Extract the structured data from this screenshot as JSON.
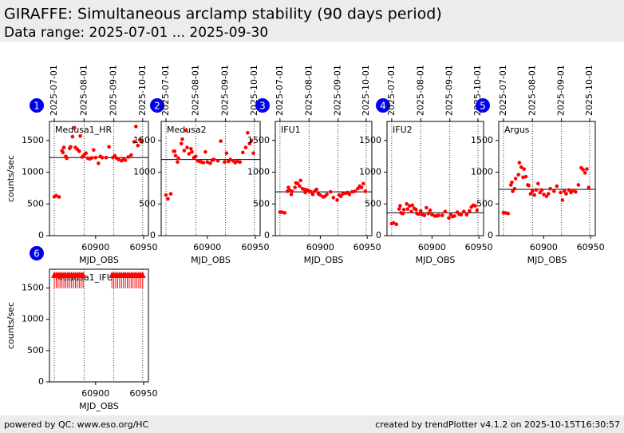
{
  "header": {
    "title": "GIRAFFE: Simultaneous arclamp stability (90 days period)",
    "subtitle": "Data range: 2025-07-01 ... 2025-09-30"
  },
  "footer": {
    "left": "powered by QC: www.eso.org/HC",
    "right": "created by trendPlotter v4.1.2 on 2025-10-15T16:30:57"
  },
  "chart_data": [
    {
      "type": "scatter",
      "panel": 1,
      "label": "Medusa1_HR",
      "ylabel": "counts/sec",
      "xlabel": "MJD_OBS",
      "color": "#ff0000",
      "xlim": [
        60852,
        60955
      ],
      "ylim": [
        0,
        1800
      ],
      "xticks": [
        60900,
        60950
      ],
      "yticks": [
        0,
        500,
        1000,
        1500
      ],
      "x2ticks": [
        {
          "value": 60857,
          "label": "2025-07-01"
        },
        {
          "value": 60888,
          "label": "2025-08-01"
        },
        {
          "value": 60919,
          "label": "2025-09-01"
        },
        {
          "value": 60949,
          "label": "2025-10-01"
        }
      ],
      "reference_line": 1230,
      "x": [
        60857,
        60859,
        60862,
        60865,
        60866,
        60867,
        60869,
        60870,
        60873,
        60874,
        60876,
        60878,
        60879,
        60881,
        60883,
        60884,
        60886,
        60888,
        60890,
        60892,
        60894,
        60896,
        60898,
        60900,
        60903,
        60905,
        60907,
        60911,
        60914,
        60918,
        60920,
        60922,
        60924,
        60927,
        60929,
        60931,
        60934,
        60937,
        60940,
        60942,
        60944,
        60946,
        60948
      ],
      "values": [
        615,
        630,
        610,
        1340,
        1310,
        1390,
        1250,
        1220,
        1375,
        1400,
        1560,
        1700,
        1390,
        1360,
        1330,
        1570,
        1240,
        1270,
        1300,
        1220,
        1210,
        1225,
        1350,
        1230,
        1140,
        1250,
        1230,
        1230,
        1400,
        1230,
        1260,
        1220,
        1200,
        1180,
        1200,
        1190,
        1240,
        1270,
        1480,
        1720,
        1420,
        1510,
        1480
      ]
    },
    {
      "type": "scatter",
      "panel": 2,
      "label": "Medusa2",
      "xlabel": "MJD_OBS",
      "color": "#ff0000",
      "xlim": [
        60852,
        60955
      ],
      "ylim": [
        0,
        1800
      ],
      "xticks": [
        60900,
        60950
      ],
      "yticks": [
        0,
        500,
        1000,
        1500
      ],
      "x2ticks": [
        {
          "value": 60857,
          "label": "2025-07-01"
        },
        {
          "value": 60888,
          "label": "2025-08-01"
        },
        {
          "value": 60919,
          "label": "2025-09-01"
        },
        {
          "value": 60949,
          "label": "2025-10-01"
        }
      ],
      "reference_line": 1200,
      "x": [
        60857,
        60859,
        60862,
        60865,
        60866,
        60867,
        60869,
        60870,
        60873,
        60874,
        60876,
        60878,
        60879,
        60881,
        60883,
        60884,
        60886,
        60888,
        60890,
        60892,
        60894,
        60896,
        60898,
        60900,
        60903,
        60905,
        60907,
        60911,
        60914,
        60918,
        60920,
        60922,
        60924,
        60927,
        60929,
        60931,
        60934,
        60937,
        60940,
        60942,
        60944,
        60946,
        60948
      ],
      "values": [
        640,
        580,
        660,
        1330,
        1330,
        1260,
        1160,
        1220,
        1450,
        1520,
        1340,
        1660,
        1390,
        1290,
        1370,
        1320,
        1230,
        1250,
        1180,
        1170,
        1160,
        1150,
        1320,
        1160,
        1140,
        1190,
        1200,
        1180,
        1490,
        1160,
        1300,
        1170,
        1200,
        1180,
        1150,
        1170,
        1160,
        1310,
        1390,
        1620,
        1450,
        1500,
        1300
      ]
    },
    {
      "type": "scatter",
      "panel": 3,
      "label": "IFU1",
      "xlabel": "MJD_OBS",
      "color": "#ff0000",
      "xlim": [
        60852,
        60955
      ],
      "ylim": [
        0,
        1800
      ],
      "xticks": [
        60900,
        60950
      ],
      "yticks": [
        0,
        500,
        1000,
        1500
      ],
      "x2ticks": [
        {
          "value": 60857,
          "label": "2025-07-01"
        },
        {
          "value": 60888,
          "label": "2025-08-01"
        },
        {
          "value": 60919,
          "label": "2025-09-01"
        },
        {
          "value": 60949,
          "label": "2025-10-01"
        }
      ],
      "reference_line": 690,
      "x": [
        60857,
        60859,
        60862,
        60865,
        60866,
        60867,
        60869,
        60870,
        60873,
        60874,
        60876,
        60878,
        60879,
        60881,
        60883,
        60884,
        60886,
        60888,
        60890,
        60892,
        60894,
        60896,
        60898,
        60900,
        60903,
        60905,
        60907,
        60911,
        60914,
        60918,
        60920,
        60922,
        60924,
        60927,
        60929,
        60931,
        60934,
        60937,
        60940,
        60942,
        60944,
        60946,
        60948
      ],
      "values": [
        370,
        370,
        360,
        700,
        760,
        720,
        650,
        700,
        760,
        830,
        820,
        780,
        870,
        740,
        730,
        680,
        720,
        700,
        690,
        650,
        700,
        730,
        660,
        640,
        610,
        620,
        650,
        690,
        600,
        560,
        640,
        620,
        660,
        670,
        680,
        650,
        690,
        700,
        740,
        780,
        760,
        820,
        700
      ]
    },
    {
      "type": "scatter",
      "panel": 4,
      "label": "IFU2",
      "xlabel": "MJD_OBS",
      "color": "#ff0000",
      "xlim": [
        60852,
        60955
      ],
      "ylim": [
        0,
        1800
      ],
      "xticks": [
        60900,
        60950
      ],
      "yticks": [
        0,
        500,
        1000,
        1500
      ],
      "x2ticks": [
        {
          "value": 60857,
          "label": "2025-07-01"
        },
        {
          "value": 60888,
          "label": "2025-08-01"
        },
        {
          "value": 60919,
          "label": "2025-09-01"
        },
        {
          "value": 60949,
          "label": "2025-10-01"
        }
      ],
      "reference_line": 360,
      "x": [
        60857,
        60859,
        60862,
        60865,
        60866,
        60867,
        60869,
        60870,
        60873,
        60874,
        60876,
        60878,
        60879,
        60881,
        60883,
        60884,
        60886,
        60888,
        60890,
        60892,
        60894,
        60896,
        60898,
        60900,
        60903,
        60905,
        60907,
        60911,
        60914,
        60918,
        60920,
        60922,
        60924,
        60927,
        60929,
        60931,
        60934,
        60937,
        60940,
        60942,
        60944,
        60946,
        60948
      ],
      "values": [
        190,
        200,
        180,
        420,
        470,
        360,
        350,
        410,
        500,
        420,
        470,
        380,
        480,
        430,
        410,
        350,
        340,
        390,
        330,
        320,
        440,
        350,
        400,
        330,
        310,
        310,
        320,
        320,
        380,
        280,
        330,
        300,
        310,
        370,
        340,
        330,
        380,
        330,
        390,
        450,
        480,
        470,
        400
      ]
    },
    {
      "type": "scatter",
      "panel": 5,
      "label": "Argus",
      "xlabel": "MJD_OBS",
      "color": "#ff0000",
      "xlim": [
        60852,
        60955
      ],
      "ylim": [
        0,
        1800
      ],
      "xticks": [
        60900,
        60950
      ],
      "yticks": [
        0,
        500,
        1000,
        1500
      ],
      "x2ticks": [
        {
          "value": 60857,
          "label": "2025-07-01"
        },
        {
          "value": 60888,
          "label": "2025-08-01"
        },
        {
          "value": 60919,
          "label": "2025-09-01"
        },
        {
          "value": 60949,
          "label": "2025-10-01"
        }
      ],
      "reference_line": 730,
      "x": [
        60857,
        60859,
        60862,
        60865,
        60866,
        60867,
        60869,
        60870,
        60873,
        60874,
        60876,
        60878,
        60879,
        60881,
        60883,
        60884,
        60886,
        60888,
        60890,
        60892,
        60894,
        60896,
        60898,
        60900,
        60903,
        60905,
        60907,
        60911,
        60914,
        60918,
        60920,
        60922,
        60924,
        60927,
        60929,
        60931,
        60934,
        60937,
        60940,
        60942,
        60944,
        60946,
        60948
      ],
      "values": [
        360,
        360,
        350,
        800,
        840,
        700,
        740,
        900,
        960,
        1150,
        1080,
        920,
        1050,
        930,
        800,
        790,
        660,
        700,
        640,
        720,
        820,
        680,
        720,
        650,
        620,
        660,
        740,
        700,
        780,
        680,
        560,
        700,
        660,
        720,
        680,
        710,
        690,
        800,
        1070,
        1040,
        990,
        1050,
        760
      ]
    },
    {
      "type": "scatter",
      "panel": 6,
      "label": "Medusa1_IFU",
      "ylabel": "counts/sec",
      "xlabel": "MJD_OBS",
      "color": "#ff0000",
      "marker": "triangle",
      "xlim": [
        60852,
        60955
      ],
      "ylim": [
        0,
        1800
      ],
      "xticks": [
        60900,
        60950
      ],
      "yticks": [
        0,
        500,
        1000,
        1500
      ],
      "vlines": [
        60857,
        60888,
        60919,
        60949
      ],
      "x": [
        60857,
        60859,
        60861,
        60863,
        60865,
        60867,
        60869,
        60871,
        60873,
        60875,
        60877,
        60879,
        60881,
        60883,
        60885,
        60887,
        60917,
        60919,
        60921,
        60923,
        60925,
        60927,
        60929,
        60931,
        60933,
        60935,
        60937,
        60939,
        60941,
        60943,
        60945,
        60947,
        60949
      ],
      "values": [
        1700,
        1700,
        1700,
        1700,
        1700,
        1700,
        1700,
        1700,
        1700,
        1700,
        1700,
        1700,
        1700,
        1700,
        1700,
        1700,
        1700,
        1700,
        1700,
        1700,
        1700,
        1700,
        1700,
        1700,
        1700,
        1700,
        1700,
        1700,
        1700,
        1700,
        1700,
        1700,
        1700
      ]
    }
  ]
}
